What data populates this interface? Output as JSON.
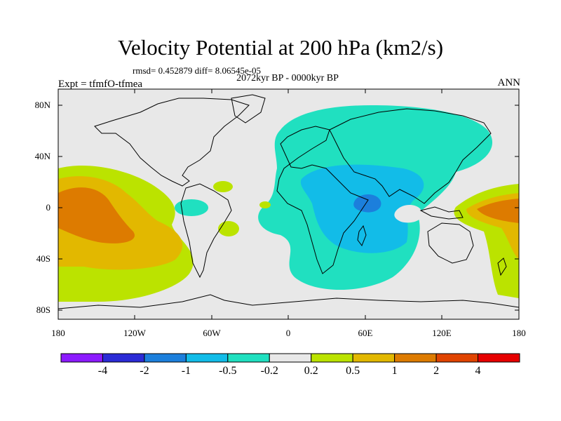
{
  "title": "Velocity Potential at 200 hPa (km2/s)",
  "stats": "rmsd= 0.452879 diff= 8.06545e-05",
  "period": "2072kyr BP - 0000kyr BP",
  "experiment": "Expt = tfmfO-tfmea",
  "season": "ANN",
  "lat_ticks": [
    "80N",
    "40N",
    "0",
    "40S",
    "80S"
  ],
  "lon_ticks": [
    "180",
    "120W",
    "60W",
    "0",
    "60E",
    "120E",
    "180"
  ],
  "colorbar": {
    "labels": [
      "-4",
      "-2",
      "-1",
      "-0.5",
      "-0.2",
      "0.2",
      "0.5",
      "1",
      "2",
      "4"
    ],
    "colors": [
      "#8c1aff",
      "#2b2bd6",
      "#1c7fdc",
      "#12bce8",
      "#20e0c0",
      "#e8e8e8",
      "#bbe300",
      "#e2b800",
      "#dd7b00",
      "#e04400",
      "#e60000"
    ]
  },
  "field_colors": {
    "ocean": "#e8e8e8",
    "teal": "#20e0c0",
    "cyan": "#12bce8",
    "blue": "#1c7fdc",
    "lime": "#bbe300",
    "yellow": "#e2b800",
    "orange": "#dd7b00"
  }
}
